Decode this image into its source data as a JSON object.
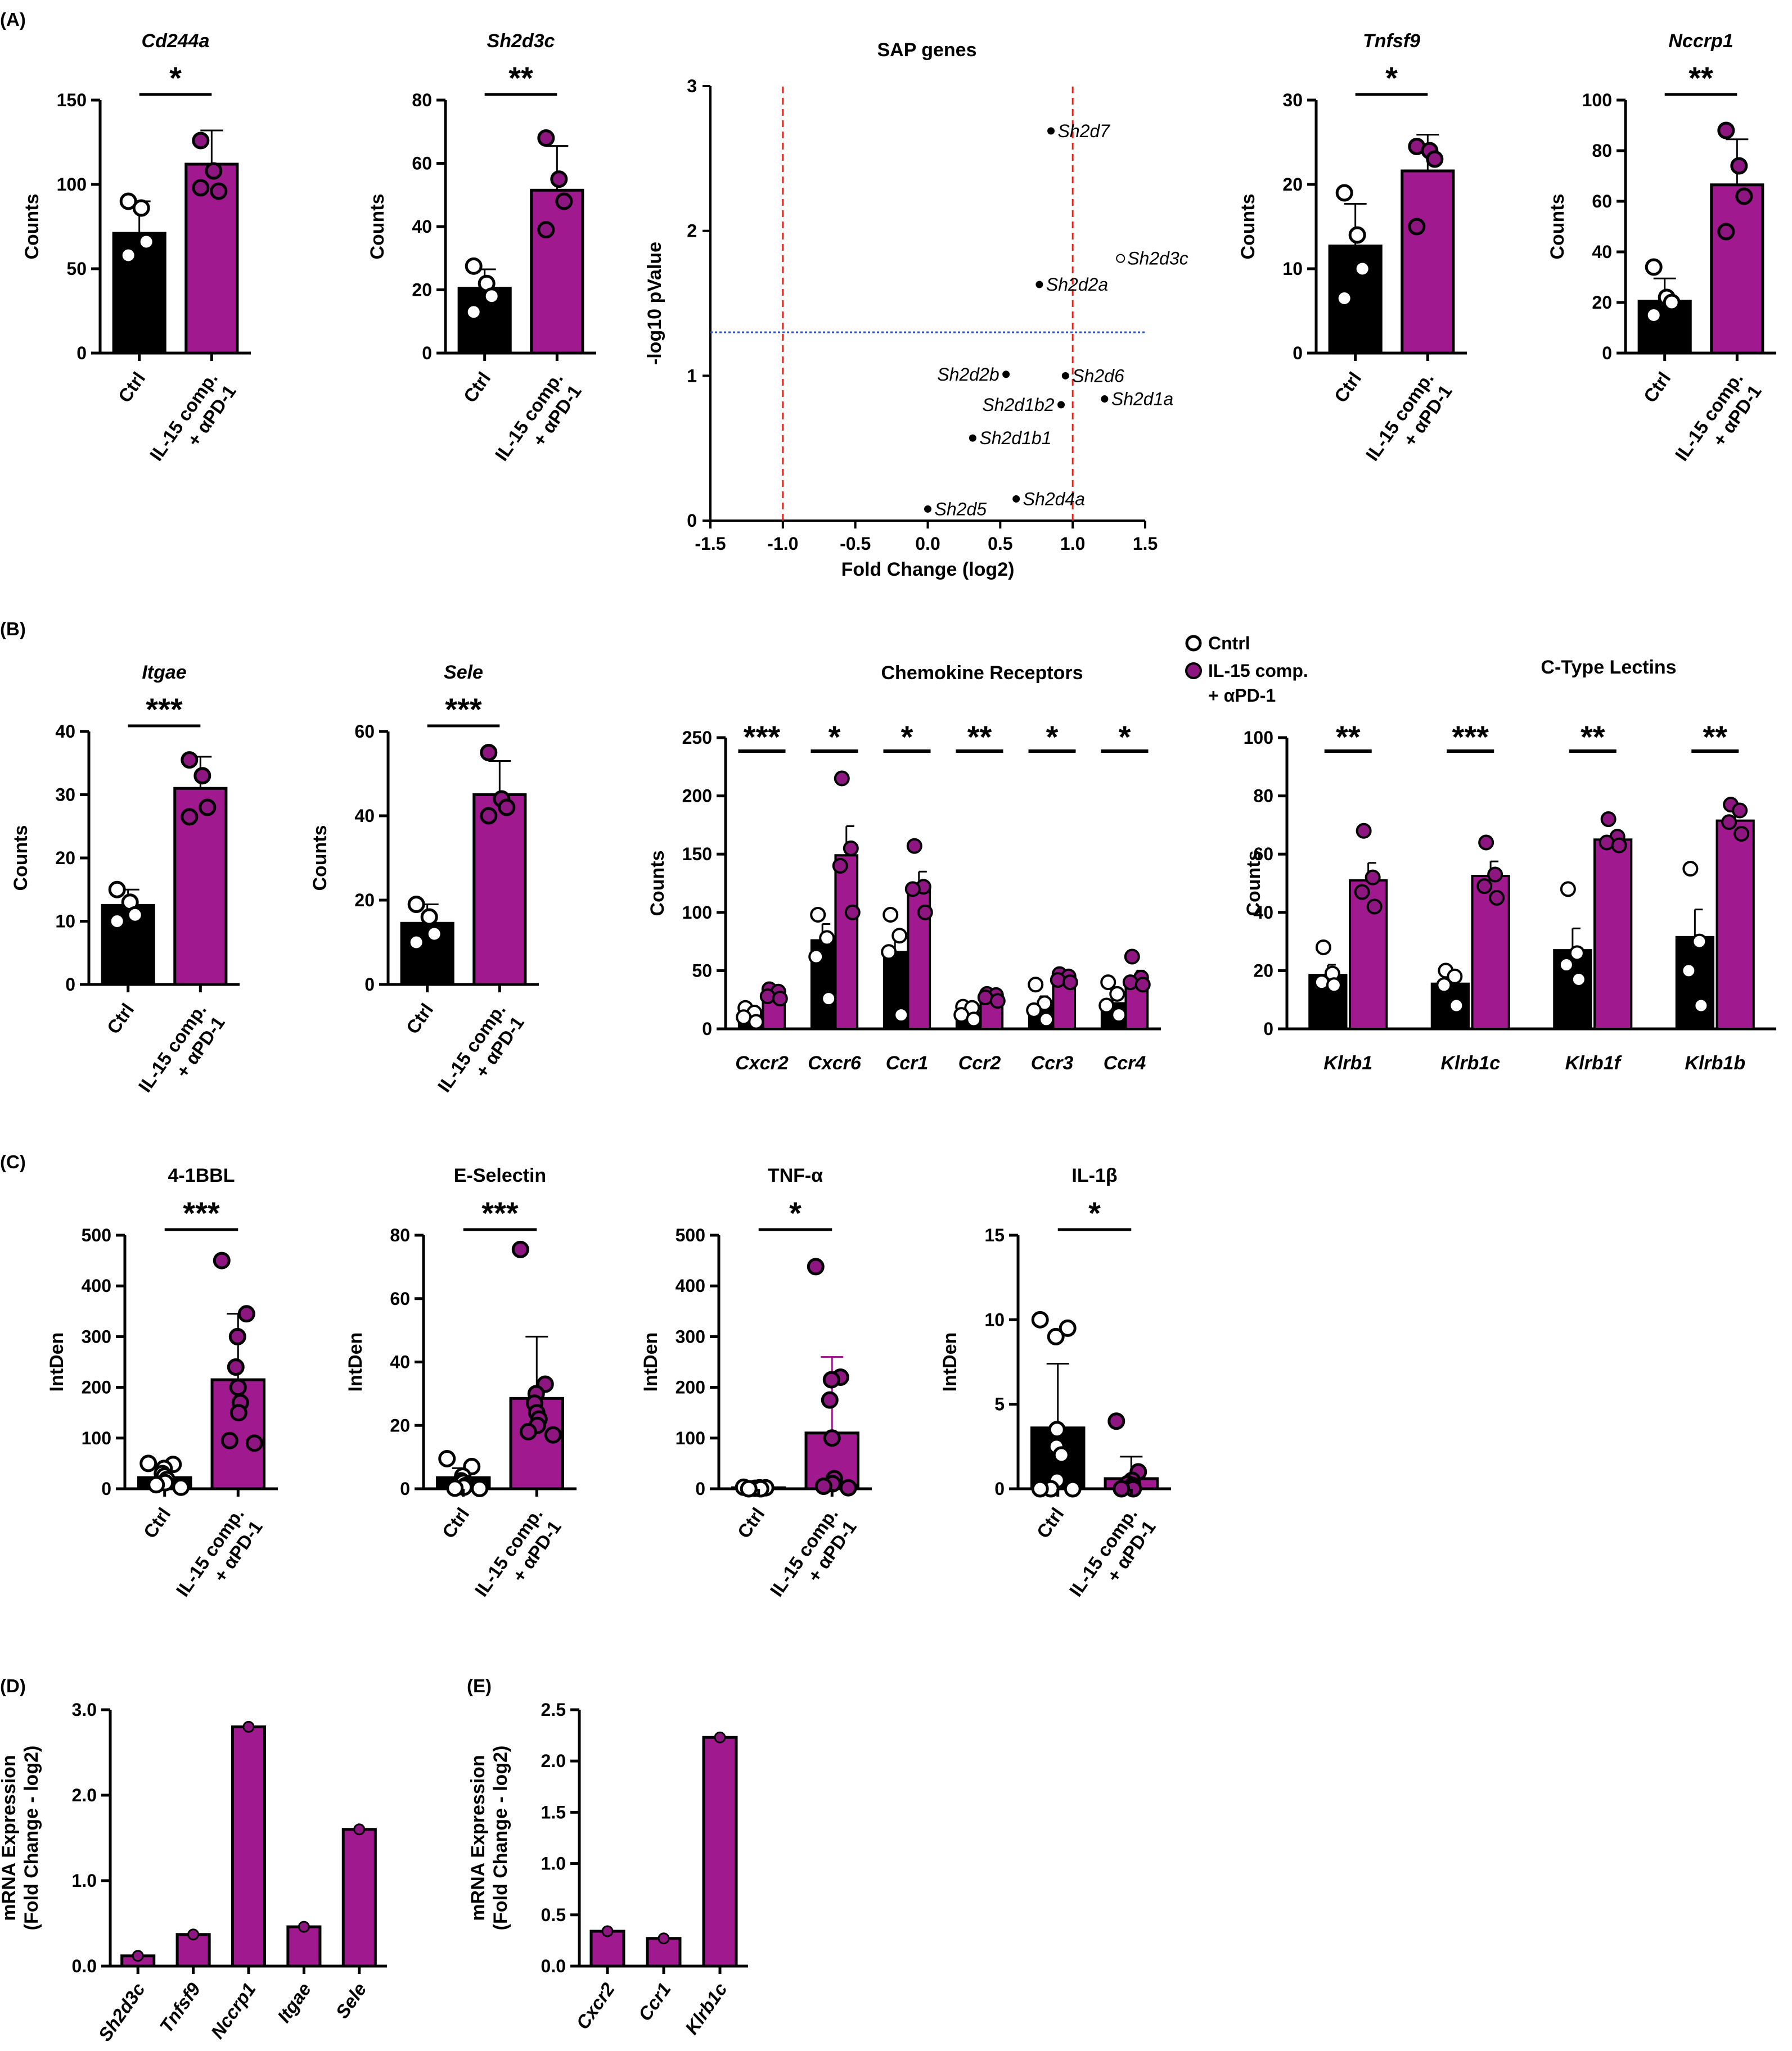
{
  "colors": {
    "ctrl": "#000000",
    "treat": "#a0198f",
    "treat_point": "#8e1681",
    "axis": "#000000",
    "red_line": "#e0261e",
    "blue_line": "#2554d6"
  },
  "panel_labels": [
    "(A)",
    "(B)",
    "(C)",
    "(D)",
    "(E)"
  ],
  "legend": {
    "ctrl": "Cntrl",
    "treat_line1": "IL-15 comp.",
    "treat_line2": "+ αPD-1"
  },
  "chart_data": [
    {
      "id": "cd244a",
      "panel": "A",
      "type": "bar",
      "title": "Cd244a",
      "italic_title": true,
      "ylabel": "Counts",
      "ylim": [
        0,
        150
      ],
      "yticks": [
        0,
        50,
        100,
        150
      ],
      "categories": [
        "Ctrl",
        "IL-15 comp.\n+ αPD-1"
      ],
      "values": [
        71,
        112
      ],
      "errors": [
        19,
        20
      ],
      "points": [
        [
          90,
          86,
          66,
          58
        ],
        [
          126,
          108,
          96,
          98
        ]
      ],
      "signif": "*"
    },
    {
      "id": "sh2d3c",
      "panel": "A",
      "type": "bar",
      "title": "Sh2d3c",
      "italic_title": true,
      "ylabel": "Counts",
      "ylim": [
        0,
        80
      ],
      "yticks": [
        0,
        20,
        40,
        60,
        80
      ],
      "categories": [
        "Ctrl",
        "IL-15 comp.\n+ αPD-1"
      ],
      "values": [
        20.5,
        51.5
      ],
      "errors": [
        6,
        14
      ],
      "points": [
        [
          27.5,
          22,
          18,
          13
        ],
        [
          68,
          55,
          48,
          39
        ]
      ],
      "signif": "**"
    },
    {
      "id": "sap",
      "panel": "A",
      "type": "scatter",
      "title": "SAP genes",
      "xlabel": "Fold Change (log2)",
      "ylabel": "-log10 pValue",
      "xlim": [
        -1.5,
        1.5
      ],
      "ylim": [
        0,
        3
      ],
      "xticks": [
        -1.5,
        -1.0,
        -0.5,
        0.0,
        0.5,
        1.0,
        1.5
      ],
      "yticks": [
        0,
        1,
        2,
        3
      ],
      "vlines": [
        -1.0,
        1.0
      ],
      "hline": 1.3,
      "points": [
        {
          "label": "Sh2d7",
          "x": 0.85,
          "y": 2.69,
          "filled": true,
          "side": "right"
        },
        {
          "label": "Sh2d3c",
          "x": 1.33,
          "y": 1.81,
          "filled": false,
          "side": "right"
        },
        {
          "label": "Sh2d2a",
          "x": 0.77,
          "y": 1.63,
          "filled": true,
          "side": "right"
        },
        {
          "label": "Sh2d2b",
          "x": 0.54,
          "y": 1.01,
          "filled": true,
          "side": "left"
        },
        {
          "label": "Sh2d6",
          "x": 0.95,
          "y": 1.0,
          "filled": true,
          "side": "right"
        },
        {
          "label": "Sh2d1b2",
          "x": 0.92,
          "y": 0.8,
          "filled": true,
          "side": "left"
        },
        {
          "label": "Sh2d1a",
          "x": 1.22,
          "y": 0.84,
          "filled": true,
          "side": "right"
        },
        {
          "label": "Sh2d1b1",
          "x": 0.31,
          "y": 0.57,
          "filled": true,
          "side": "right"
        },
        {
          "label": "Sh2d5",
          "x": 0.0,
          "y": 0.08,
          "filled": true,
          "side": "right"
        },
        {
          "label": "Sh2d4a",
          "x": 0.61,
          "y": 0.15,
          "filled": true,
          "side": "right"
        }
      ]
    },
    {
      "id": "tnfsf9",
      "panel": "A",
      "type": "bar",
      "title": "Tnfsf9",
      "italic_title": true,
      "ylabel": "Counts",
      "ylim": [
        0,
        30
      ],
      "yticks": [
        0,
        10,
        20,
        30
      ],
      "categories": [
        "Ctrl",
        "IL-15 comp.\n+ αPD-1"
      ],
      "values": [
        12.7,
        21.6
      ],
      "errors": [
        5,
        4.3
      ],
      "points": [
        [
          19,
          14,
          10,
          6.5
        ],
        [
          24.5,
          24,
          23,
          15
        ]
      ],
      "signif": "*"
    },
    {
      "id": "nccrp1",
      "panel": "A",
      "type": "bar",
      "title": "Nccrp1",
      "italic_title": true,
      "ylabel": "Counts",
      "ylim": [
        0,
        100
      ],
      "yticks": [
        0,
        20,
        40,
        60,
        80,
        100
      ],
      "categories": [
        "Ctrl",
        "IL-15 comp.\n+ αPD-1"
      ],
      "values": [
        20.5,
        66.5
      ],
      "errors": [
        9,
        18
      ],
      "points": [
        [
          34,
          22,
          20,
          15
        ],
        [
          88,
          74,
          62,
          48
        ]
      ],
      "signif": "**"
    },
    {
      "id": "itgae",
      "panel": "B",
      "type": "bar",
      "title": "Itgae",
      "italic_title": true,
      "ylabel": "Counts",
      "ylim": [
        0,
        40
      ],
      "yticks": [
        0,
        10,
        20,
        30,
        40
      ],
      "categories": [
        "Ctrl",
        "IL-15 comp.\n+ αPD-1"
      ],
      "values": [
        12.5,
        31
      ],
      "errors": [
        2.5,
        5
      ],
      "points": [
        [
          15,
          13,
          11,
          10
        ],
        [
          35.5,
          33,
          28,
          26.5
        ]
      ],
      "signif": "***"
    },
    {
      "id": "sele",
      "panel": "B",
      "type": "bar",
      "title": "Sele",
      "italic_title": true,
      "ylabel": "Counts",
      "ylim": [
        0,
        60
      ],
      "yticks": [
        0,
        20,
        40,
        60
      ],
      "categories": [
        "Ctrl",
        "IL-15 comp.\n+ αPD-1"
      ],
      "values": [
        14.5,
        45
      ],
      "errors": [
        4.5,
        8
      ],
      "points": [
        [
          19,
          16,
          12,
          10
        ],
        [
          55,
          44,
          42,
          40
        ]
      ],
      "signif": "***"
    },
    {
      "id": "chemokine",
      "panel": "B",
      "type": "grouped_bar",
      "title": "Chemokine Receptors",
      "italic_title": false,
      "ylabel": "Counts",
      "ylim": [
        0,
        250
      ],
      "yticks": [
        0,
        50,
        100,
        150,
        200,
        250
      ],
      "categories": [
        "Cxcr2",
        "Cxcr6",
        "Ccr1",
        "Ccr2",
        "Ccr3",
        "Ccr4"
      ],
      "series": [
        {
          "name": "Cntrl",
          "values": [
            12,
            76,
            66,
            14,
            20,
            22
          ],
          "errors": [
            3,
            14,
            15,
            3,
            8,
            10
          ]
        },
        {
          "name": "IL-15 comp.\n+ αPD-1",
          "values": [
            30,
            149,
            121,
            27,
            41,
            42
          ],
          "errors": [
            5,
            25,
            14,
            4,
            5,
            8
          ]
        }
      ],
      "points": [
        [
          [
            18,
            14,
            10,
            6
          ],
          [
            98,
            78,
            62,
            26
          ],
          [
            98,
            80,
            66,
            12
          ],
          [
            19,
            18,
            12,
            8
          ],
          [
            38,
            22,
            16,
            8
          ],
          [
            40,
            30,
            20,
            12
          ]
        ],
        [
          [
            34,
            32,
            28,
            26
          ],
          [
            215,
            155,
            140,
            100
          ],
          [
            157,
            122,
            120,
            100
          ],
          [
            30,
            29,
            27,
            24
          ],
          [
            47,
            45,
            42,
            40
          ],
          [
            62,
            44,
            40,
            38
          ]
        ]
      ],
      "signif": [
        "***",
        "*",
        "*",
        "**",
        "*",
        "*"
      ]
    },
    {
      "id": "lectins",
      "panel": "B",
      "type": "grouped_bar",
      "title": "C-Type Lectins",
      "italic_title": false,
      "ylabel": "Counts",
      "ylim": [
        0,
        100
      ],
      "yticks": [
        0,
        20,
        40,
        60,
        80,
        100
      ],
      "categories": [
        "Klrb1",
        "Klrb1c",
        "Klrb1f",
        "Klrb1b"
      ],
      "series": [
        {
          "name": "Cntrl",
          "values": [
            18.5,
            15.5,
            27,
            31.5
          ],
          "errors": [
            3.5,
            4,
            7.5,
            9.5
          ],
          "points": []
        },
        {
          "name": "IL-15 comp.\n+ αPD-1",
          "values": [
            51,
            52.5,
            65,
            71.5
          ],
          "errors": [
            6,
            5,
            2.5,
            3
          ]
        }
      ],
      "points": [
        [
          [
            28,
            19,
            16,
            15
          ],
          [
            20,
            18,
            15,
            8
          ],
          [
            48,
            26,
            22,
            17
          ],
          [
            55,
            30,
            20,
            8
          ]
        ],
        [
          [
            68,
            52,
            47,
            42
          ],
          [
            64,
            53,
            49,
            45
          ],
          [
            72,
            66,
            64,
            63
          ],
          [
            77,
            75,
            71,
            67
          ]
        ]
      ],
      "signif": [
        "**",
        "***",
        "**",
        "**"
      ]
    },
    {
      "id": "41bbl",
      "panel": "C",
      "type": "bar",
      "title": "4-1BBL",
      "italic_title": false,
      "ylabel": "IntDen",
      "ylim": [
        0,
        500
      ],
      "yticks": [
        0,
        100,
        200,
        300,
        400,
        500
      ],
      "categories": [
        "Ctrl",
        "IL-15 comp.\n+ αPD-1"
      ],
      "values": [
        22,
        215
      ],
      "errors": [
        18,
        130
      ],
      "points": [
        [
          50,
          48,
          40,
          30,
          25,
          18,
          12,
          8,
          3
        ],
        [
          450,
          345,
          300,
          240,
          200,
          170,
          150,
          95,
          90
        ]
      ],
      "signif": "***"
    },
    {
      "id": "eselectin",
      "panel": "C",
      "type": "bar",
      "title": "E-Selectin",
      "italic_title": false,
      "ylabel": "IntDen",
      "ylim": [
        0,
        80
      ],
      "yticks": [
        0,
        20,
        40,
        60,
        80
      ],
      "categories": [
        "Ctrl",
        "IL-15 comp.\n+ αPD-1"
      ],
      "values": [
        3.5,
        28.5
      ],
      "errors": [
        3,
        19.5
      ],
      "points": [
        [
          9.5,
          7,
          4,
          2.5,
          2,
          1,
          0.5,
          0.2,
          0.1
        ],
        [
          75.5,
          33,
          30,
          27,
          24,
          22,
          20,
          18,
          17
        ]
      ],
      "signif": "***"
    },
    {
      "id": "tnfa",
      "panel": "C",
      "type": "bar",
      "title": "TNF-α",
      "italic_title": false,
      "ylabel": "IntDen",
      "ylim": [
        0,
        500
      ],
      "yticks": [
        0,
        100,
        200,
        300,
        400,
        500
      ],
      "categories": [
        "Ctrl",
        "IL-15 comp.\n+ αPD-1"
      ],
      "values": [
        2,
        110
      ],
      "errors": [
        1,
        150
      ],
      "points": [
        [
          3,
          2,
          2,
          1,
          1,
          1,
          0,
          0
        ],
        [
          438,
          220,
          215,
          175,
          100,
          20,
          10,
          5,
          2
        ]
      ],
      "signif": "*",
      "treat_error_color": "#a0198f"
    },
    {
      "id": "il1b",
      "panel": "C",
      "type": "bar",
      "title": "IL-1β",
      "italic_title": false,
      "ylabel": "IntDen",
      "ylim": [
        0,
        15
      ],
      "yticks": [
        0,
        5,
        10,
        15
      ],
      "categories": [
        "Ctrl",
        "IL-15 comp.\n+ αPD-1"
      ],
      "values": [
        3.6,
        0.6
      ],
      "errors": [
        3.8,
        1.3
      ],
      "points": [
        [
          10,
          9.5,
          9,
          3.5,
          2.5,
          2,
          0.5,
          0,
          0,
          0
        ],
        [
          4,
          1,
          0.5,
          0.3,
          0.2,
          0.1,
          0,
          0
        ]
      ],
      "signif": "*"
    },
    {
      "id": "mrna_d",
      "panel": "D",
      "type": "bar",
      "title": "",
      "ylabel": "mRNA Expression\n(Fold Change - log2)",
      "ylim": [
        0,
        3
      ],
      "yticks": [
        0,
        1,
        2,
        3
      ],
      "ytick_format": "1",
      "categories": [
        "Sh2d3c",
        "Tnfsf9",
        "Nccrp1",
        "Itgae",
        "Sele"
      ],
      "values": [
        0.12,
        0.37,
        2.8,
        0.46,
        1.6
      ]
    },
    {
      "id": "mrna_e",
      "panel": "E",
      "type": "bar",
      "title": "",
      "ylabel": "mRNA Expression\n(Fold Change - log2)",
      "ylim": [
        0,
        2.5
      ],
      "yticks": [
        0,
        0.5,
        1,
        1.5,
        2,
        2.5
      ],
      "ytick_format": "1",
      "categories": [
        "Cxcr2",
        "Ccr1",
        "Klrb1c"
      ],
      "values": [
        0.34,
        0.27,
        2.23
      ]
    }
  ]
}
